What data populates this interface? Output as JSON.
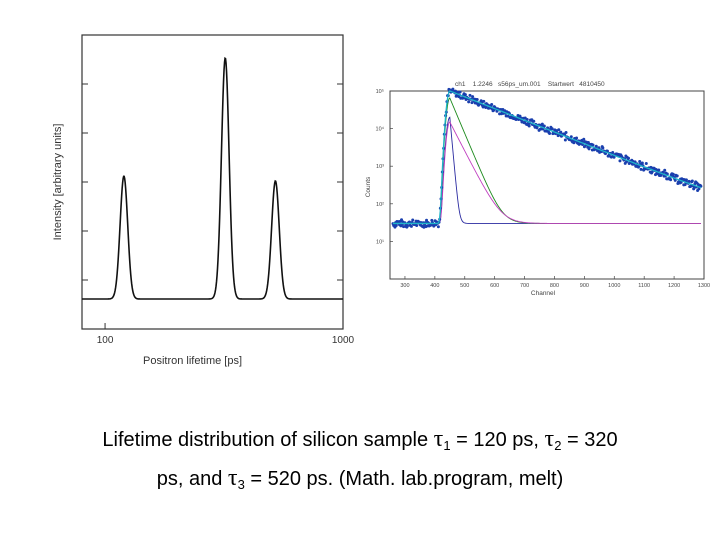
{
  "chart_data": [
    {
      "type": "line",
      "xscale": "log",
      "xlabel": "Positron lifetime [ps]",
      "ylabel": "Intensity [arbitrary units]",
      "xlim": [
        80,
        1000
      ],
      "x_tick_labels": [
        {
          "value": 100,
          "label": "100"
        },
        {
          "value": 1000,
          "label": "1000"
        }
      ],
      "ylim": [
        0,
        1.0
      ],
      "series": [
        {
          "name": "lifetime distribution",
          "peaks": [
            {
              "lifetime": 120,
              "relative_height": 0.51
            },
            {
              "lifetime": 320,
              "relative_height": 1.0
            },
            {
              "lifetime": 520,
              "relative_height": 0.49
            }
          ]
        }
      ]
    },
    {
      "type": "line",
      "yscale": "log",
      "header_text": "ch1    1.2246   s56ps_um.001    Startwert   4810450",
      "xlabel": "Channel",
      "ylabel": "Counts",
      "xlim": [
        250,
        1300
      ],
      "x_ticks": [
        300,
        400,
        500,
        600,
        700,
        800,
        900,
        1000,
        1100,
        1200,
        1300
      ],
      "ylim": [
        1,
        100000
      ],
      "y_ticks": [
        {
          "value": 100000,
          "label": "10⁵"
        },
        {
          "value": 10000,
          "label": "10⁴"
        },
        {
          "value": 1000,
          "label": "10³"
        },
        {
          "value": 100,
          "label": "10²"
        },
        {
          "value": 10,
          "label": "10¹"
        }
      ],
      "background": 30,
      "peak_channel": 450,
      "series": [
        {
          "name": "measured spectrum",
          "color": "#1a3fae",
          "amplitude": 100000,
          "decay": 139
        },
        {
          "name": "fit",
          "color": "#1fb4c8",
          "amplitude": 100000,
          "decay": 139
        },
        {
          "name": "component 1",
          "color": "#2a2aa0",
          "amplitude": 20000,
          "decay": 5
        },
        {
          "name": "component 2",
          "color": "#1c8a1c",
          "amplitude": 65000,
          "decay": 23
        },
        {
          "name": "component 3",
          "color": "#c040c0",
          "amplitude": 15000,
          "decay": 28
        }
      ]
    }
  ],
  "caption": {
    "line1_pre": "Lifetime distribution of silicon sample ",
    "tau1_symbol": "τ",
    "tau1_sub": "1",
    "tau1_value": " = 120 ps, ",
    "tau2_symbol": "τ",
    "tau2_sub": "2",
    "tau2_value": " = 320",
    "line2_pre": "ps, and ",
    "tau3_symbol": "τ",
    "tau3_sub": "3",
    "tau3_value": " = 520 ps. (Math. lab.program, melt)"
  }
}
